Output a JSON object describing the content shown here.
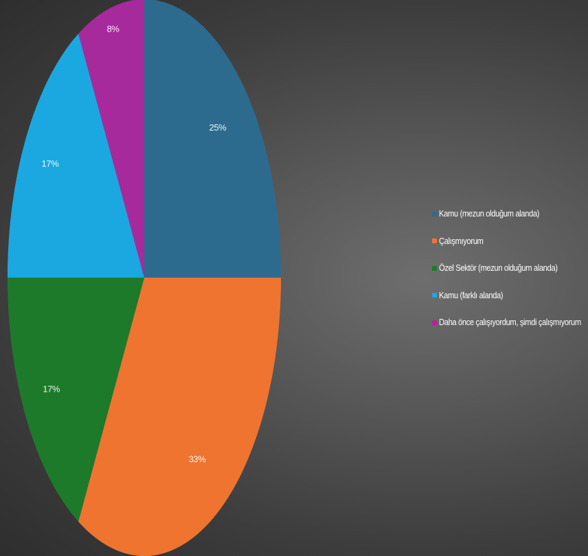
{
  "chart_data": {
    "type": "pie",
    "title": "",
    "series": [
      {
        "values": [
          25,
          33,
          17,
          17,
          8
        ]
      }
    ],
    "categories": [
      "Kamu (mezun olduğum alanda)",
      "Çalışmıyorum",
      "Özel Sektör (mezun olduğum alanda)",
      "Kamu (farklı alanda)",
      "Daha önce çalışıyordum, şimdi çalışmıyorum"
    ],
    "data_labels": [
      "25%",
      "33%",
      "17%",
      "17%",
      "8%"
    ],
    "colors": [
      "#2d6b8e",
      "#ee7430",
      "#1d7a2a",
      "#1ba8e0",
      "#a72a9c"
    ],
    "start_angle_deg": 0,
    "direction": "clockwise",
    "legend_position": "right"
  }
}
